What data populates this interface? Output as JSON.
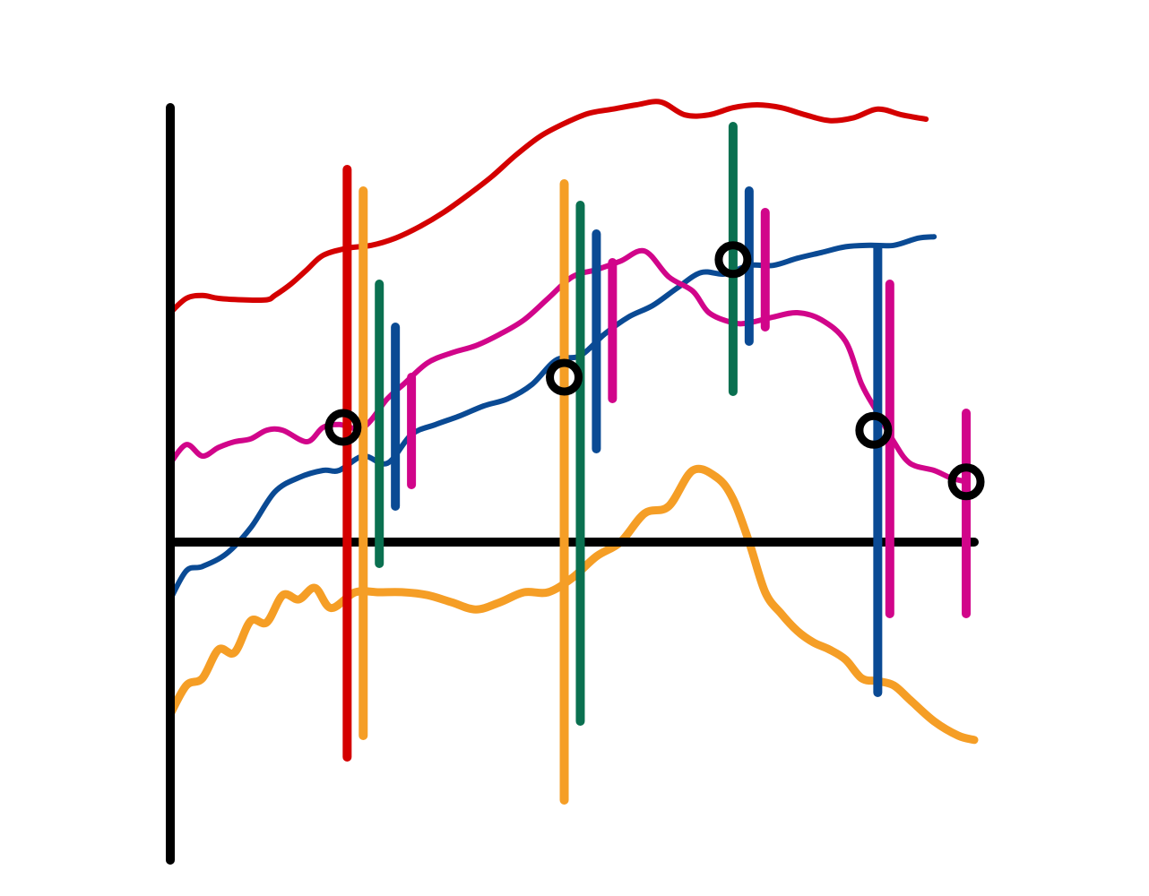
{
  "chart_data": {
    "type": "line",
    "title": "",
    "xlabel": "",
    "ylabel": "",
    "xlim": [
      0,
      100
    ],
    "ylim": [
      -2.5,
      3.0
    ],
    "grid": false,
    "legend": "none",
    "series": [
      {
        "color": "#d40000",
        "x": [
          0,
          2,
          4,
          6,
          9,
          12,
          13,
          15,
          17,
          19,
          22,
          25,
          28,
          31,
          34,
          37,
          40,
          43,
          46,
          49,
          52,
          55,
          58,
          61,
          64,
          67,
          70,
          73,
          76,
          79,
          82,
          85,
          88,
          91,
          94
        ],
        "y": [
          1.6,
          1.7,
          1.72,
          1.7,
          1.69,
          1.69,
          1.72,
          1.8,
          1.9,
          2.0,
          2.05,
          2.07,
          2.12,
          2.2,
          2.3,
          2.42,
          2.55,
          2.7,
          2.83,
          2.92,
          2.99,
          3.02,
          3.05,
          3.07,
          2.98,
          2.98,
          3.03,
          3.05,
          3.03,
          2.98,
          2.94,
          2.96,
          3.02,
          2.98,
          2.95
        ]
      },
      {
        "color": "#0a4a94",
        "x": [
          0,
          2,
          4,
          7,
          10,
          13,
          16,
          19,
          21,
          24,
          27,
          30,
          33,
          36,
          39,
          42,
          45,
          48,
          51,
          54,
          57,
          60,
          63,
          66,
          69,
          72,
          75,
          78,
          81,
          84,
          87,
          90,
          93,
          95
        ],
        "y": [
          -0.4,
          -0.2,
          -0.17,
          -0.08,
          0.1,
          0.35,
          0.45,
          0.5,
          0.5,
          0.6,
          0.55,
          0.75,
          0.82,
          0.88,
          0.95,
          1.0,
          1.1,
          1.27,
          1.3,
          1.45,
          1.57,
          1.65,
          1.77,
          1.88,
          1.87,
          1.93,
          1.93,
          1.98,
          2.02,
          2.06,
          2.07,
          2.07,
          2.12,
          2.13
        ]
      },
      {
        "color": "#d1058a",
        "x": [
          0,
          2,
          4,
          6,
          8,
          10,
          12,
          14,
          17,
          19,
          21,
          24,
          27,
          29,
          32,
          35,
          38,
          41,
          44,
          47,
          50,
          53,
          56,
          59,
          62,
          65,
          67,
          70,
          72,
          75,
          78,
          81,
          84,
          86,
          88,
          90,
          92,
          95,
          97,
          99
        ],
        "y": [
          0.55,
          0.68,
          0.6,
          0.66,
          0.7,
          0.72,
          0.78,
          0.78,
          0.7,
          0.8,
          0.82,
          0.8,
          1.0,
          1.1,
          1.25,
          1.32,
          1.37,
          1.45,
          1.55,
          1.7,
          1.85,
          1.9,
          1.96,
          2.03,
          1.85,
          1.75,
          1.6,
          1.53,
          1.53,
          1.57,
          1.6,
          1.55,
          1.4,
          1.1,
          0.9,
          0.7,
          0.55,
          0.5,
          0.45,
          0.42
        ]
      },
      {
        "color": "#f59e26",
        "x": [
          0,
          2,
          4,
          6,
          8,
          10,
          12,
          14,
          16,
          18,
          20,
          23,
          26,
          29,
          32,
          35,
          38,
          41,
          44,
          47,
          50,
          53,
          56,
          59,
          62,
          65,
          68,
          70,
          72,
          74,
          76,
          78,
          80,
          82,
          84,
          86,
          88,
          90,
          92,
          95,
          98,
          100
        ],
        "y": [
          -1.2,
          -1.0,
          -0.95,
          -0.75,
          -0.77,
          -0.55,
          -0.56,
          -0.37,
          -0.4,
          -0.32,
          -0.46,
          -0.35,
          -0.35,
          -0.35,
          -0.37,
          -0.42,
          -0.47,
          -0.42,
          -0.35,
          -0.35,
          -0.25,
          -0.1,
          -0.0,
          0.2,
          0.25,
          0.5,
          0.45,
          0.3,
          0.0,
          -0.35,
          -0.5,
          -0.62,
          -0.7,
          -0.75,
          -0.82,
          -0.95,
          -0.97,
          -1.0,
          -1.1,
          -1.25,
          -1.35,
          -1.38
        ]
      }
    ],
    "range_bars": [
      {
        "x": 22,
        "low": -1.5,
        "high": 2.6,
        "color": "#d40000"
      },
      {
        "x": 24,
        "low": -1.35,
        "high": 2.45,
        "color": "#f59e26"
      },
      {
        "x": 26,
        "low": -0.15,
        "high": 1.8,
        "color": "#0a7050"
      },
      {
        "x": 28,
        "low": 0.25,
        "high": 1.5,
        "color": "#0a4a94"
      },
      {
        "x": 30,
        "low": 0.4,
        "high": 1.15,
        "color": "#d1058a"
      },
      {
        "x": 49,
        "low": -1.8,
        "high": 2.5,
        "color": "#f59e26"
      },
      {
        "x": 51,
        "low": -1.25,
        "high": 2.35,
        "color": "#0a7050"
      },
      {
        "x": 53,
        "low": 0.65,
        "high": 2.15,
        "color": "#0a4a94"
      },
      {
        "x": 55,
        "low": 1.0,
        "high": 1.95,
        "color": "#d1058a"
      },
      {
        "x": 70,
        "low": 1.05,
        "high": 2.9,
        "color": "#0a7050"
      },
      {
        "x": 72,
        "low": 1.4,
        "high": 2.45,
        "color": "#0a4a94"
      },
      {
        "x": 74,
        "low": 1.5,
        "high": 2.3,
        "color": "#d1058a"
      },
      {
        "x": 88,
        "low": -1.05,
        "high": 2.05,
        "color": "#0a4a94"
      },
      {
        "x": 89.5,
        "low": -0.5,
        "high": 1.8,
        "color": "#d1058a"
      },
      {
        "x": 99,
        "low": -0.5,
        "high": 0.9,
        "color": "#d1058a"
      }
    ],
    "markers": [
      {
        "x": 21.5,
        "y": 0.8
      },
      {
        "x": 49,
        "y": 1.15
      },
      {
        "x": 70,
        "y": 1.97
      },
      {
        "x": 87.5,
        "y": 0.78
      },
      {
        "x": 99,
        "y": 0.42
      }
    ],
    "axis_color": "#000000",
    "marker_color": "#000000"
  }
}
